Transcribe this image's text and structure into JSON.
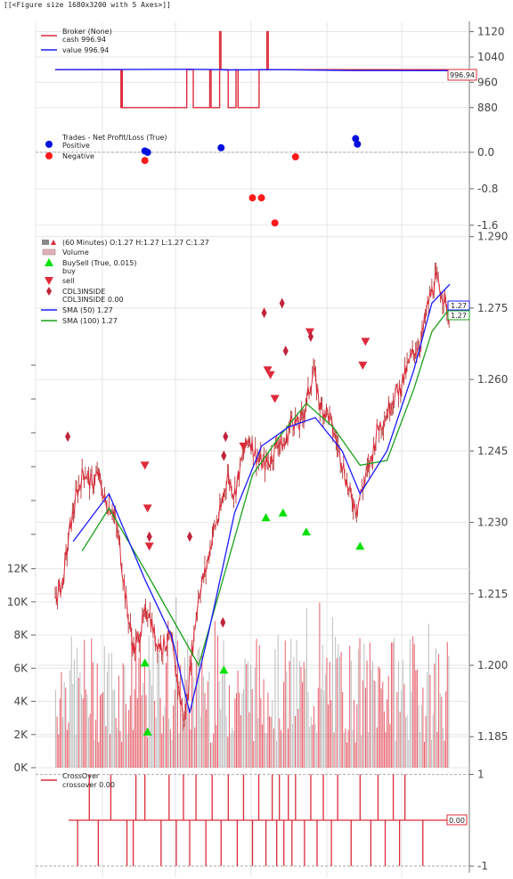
{
  "figure_repr": "[[<Figure size 1680x3200 with 5 Axes>]]",
  "colors": {
    "red": "#dd2a3a",
    "blue": "#1a1aff",
    "green": "#1aa01a",
    "lime": "#00e000",
    "grid": "#e6e6e6",
    "marker_blue": "#0011dd",
    "marker_red": "#ff1a1a",
    "gray": "#a8a8a8"
  },
  "chart_data": [
    {
      "type": "line",
      "panel": "broker",
      "legend": [
        "Broker (None)",
        "cash 996.94",
        "value 996.94"
      ],
      "tag": "996.94",
      "ylim": [
        840,
        1130
      ],
      "yticks": [
        "1120",
        "1040",
        "960",
        "880"
      ],
      "ytick_values": [
        1120,
        1040,
        960,
        880
      ],
      "series": [
        {
          "name": "cash 996.94",
          "x": [
            0,
            100,
            100,
            101,
            101,
            102,
            102,
            200,
            200,
            210,
            210,
            235,
            235,
            237,
            237,
            250,
            250,
            252,
            252,
            263,
            263,
            275,
            275,
            278,
            278,
            310,
            310,
            322,
            322,
            324,
            324,
            600
          ],
          "values": [
            1000,
            1000,
            880,
            880,
            1000,
            1000,
            880,
            880,
            1000,
            1000,
            880,
            880,
            1000,
            1000,
            880,
            880,
            1120,
            1120,
            1000,
            1000,
            880,
            880,
            1000,
            1000,
            880,
            880,
            1000,
            1000,
            1120,
            1120,
            1000,
            1000
          ]
        },
        {
          "name": "value 996.94",
          "x": [
            0,
            200,
            250,
            260,
            340,
            450,
            600
          ],
          "values": [
            1000,
            1001,
            1000,
            999,
            1000,
            997,
            996.94
          ]
        }
      ]
    },
    {
      "type": "scatter",
      "panel": "trades",
      "legend": [
        "Trades - Net Profit/Loss (True)",
        "Positive",
        "Negative"
      ],
      "ylim": [
        -1.7,
        0.45
      ],
      "yticks": [
        "0.0",
        "-0.8",
        "-1.6"
      ],
      "ytick_values": [
        0.0,
        -0.8,
        -1.6
      ],
      "positive": {
        "x": [
          100,
          103,
          185,
          335,
          337
        ],
        "values": [
          0.03,
          0.0,
          0.1,
          0.3,
          0.18
        ]
      },
      "negative": {
        "x": [
          100,
          220,
          230,
          245,
          268
        ],
        "values": [
          -0.18,
          -1.0,
          -1.0,
          -1.55,
          -0.1
        ]
      }
    },
    {
      "type": "line",
      "panel": "price",
      "legend": [
        "(60 Minutes) O:1.27 H:1.27 L:1.27 C:1.27",
        "Volume",
        "BuySell (True, 0.015)",
        "buy",
        "sell",
        "CDL3INSIDE",
        "CDL3INSIDE 0.00",
        "SMA (50) 1.27",
        "SMA (100) 1.27"
      ],
      "tags": [
        "1.27",
        "1.27"
      ],
      "ylim": [
        1.1785,
        1.2905
      ],
      "yticks": [
        "1.290",
        "1.275",
        "1.260",
        "1.245",
        "1.230",
        "1.215",
        "1.200",
        "1.185"
      ],
      "ytick_values": [
        1.29,
        1.275,
        1.26,
        1.245,
        1.23,
        1.215,
        1.2,
        1.185
      ],
      "close": {
        "x": [
          0,
          8,
          16,
          24,
          32,
          40,
          48,
          56,
          64,
          72,
          80,
          88,
          96,
          104,
          112,
          120,
          128,
          136,
          144,
          152,
          160,
          168,
          176,
          184,
          192,
          200,
          208,
          216,
          224,
          232,
          240,
          248,
          256,
          264,
          272,
          280,
          288,
          296,
          304,
          312,
          320,
          328,
          336,
          344,
          352,
          360,
          368,
          376,
          384,
          392,
          400,
          408,
          416,
          424,
          432,
          440
        ],
        "values": [
          1.214,
          1.217,
          1.228,
          1.236,
          1.241,
          1.238,
          1.24,
          1.234,
          1.233,
          1.225,
          1.212,
          1.203,
          1.208,
          1.212,
          1.205,
          1.204,
          1.206,
          1.197,
          1.188,
          1.202,
          1.215,
          1.22,
          1.228,
          1.232,
          1.24,
          1.236,
          1.243,
          1.248,
          1.244,
          1.242,
          1.243,
          1.247,
          1.246,
          1.252,
          1.25,
          1.255,
          1.262,
          1.254,
          1.253,
          1.248,
          1.243,
          1.236,
          1.233,
          1.238,
          1.243,
          1.25,
          1.252,
          1.256,
          1.258,
          1.262,
          1.266,
          1.268,
          1.276,
          1.281,
          1.278,
          1.273
        ]
      },
      "sma50": {
        "x": [
          20,
          60,
          100,
          130,
          150,
          170,
          200,
          230,
          260,
          290,
          320,
          340,
          370,
          400,
          420,
          440
        ],
        "values": [
          1.226,
          1.236,
          1.218,
          1.206,
          1.19,
          1.206,
          1.232,
          1.246,
          1.25,
          1.252,
          1.245,
          1.236,
          1.245,
          1.262,
          1.276,
          1.28
        ]
      },
      "sma100": {
        "x": [
          30,
          60,
          100,
          130,
          160,
          190,
          220,
          250,
          280,
          310,
          340,
          370,
          400,
          420,
          440
        ],
        "values": [
          1.224,
          1.233,
          1.22,
          1.21,
          1.2,
          1.22,
          1.24,
          1.248,
          1.255,
          1.25,
          1.242,
          1.243,
          1.258,
          1.27,
          1.275
        ]
      },
      "buy": {
        "x": [
          100,
          103,
          188,
          235,
          254,
          280,
          340
        ],
        "values": [
          1.2005,
          1.186,
          1.199,
          1.231,
          1.232,
          1.228,
          1.225
        ]
      },
      "sell": {
        "x": [
          100,
          103,
          105,
          210,
          237,
          240,
          245,
          284,
          343,
          346
        ],
        "values": [
          1.242,
          1.233,
          1.225,
          1.246,
          1.262,
          1.261,
          1.256,
          1.27,
          1.263,
          1.268
        ]
      },
      "cdl3inside": {
        "x": [
          14,
          105,
          150,
          187,
          190,
          188,
          233,
          253,
          257,
          285
        ],
        "values": [
          1.248,
          1.227,
          1.227,
          1.209,
          1.248,
          1.244,
          1.274,
          1.276,
          1.266,
          1.269
        ]
      },
      "volume": {
        "ylim": [
          0,
          13000
        ],
        "yticks": [
          "12K",
          "10K",
          "8K",
          "6K",
          "4K",
          "2K",
          "0K"
        ],
        "ytick_values": [
          12000,
          10000,
          8000,
          6000,
          4000,
          2000,
          0
        ]
      }
    },
    {
      "type": "line",
      "panel": "crossover",
      "legend": [
        "CrossOver",
        "crossover 0.00"
      ],
      "tag": "0.00",
      "ylim": [
        -1.05,
        1.05
      ],
      "yticks": [
        "1",
        "-1"
      ],
      "ytick_values": [
        1,
        -1
      ],
      "spikes": {
        "up": [
          38,
          62,
          90,
          100,
          127,
          143,
          157,
          175,
          193,
          210,
          227,
          242,
          250,
          260,
          268,
          285,
          299,
          315,
          340,
          360,
          377,
          390
        ],
        "down": [
          25,
          48,
          80,
          87,
          118,
          135,
          150,
          168,
          185,
          203,
          220,
          235,
          247,
          255,
          264,
          278,
          292,
          308,
          330,
          352,
          368,
          384,
          410
        ]
      }
    }
  ]
}
